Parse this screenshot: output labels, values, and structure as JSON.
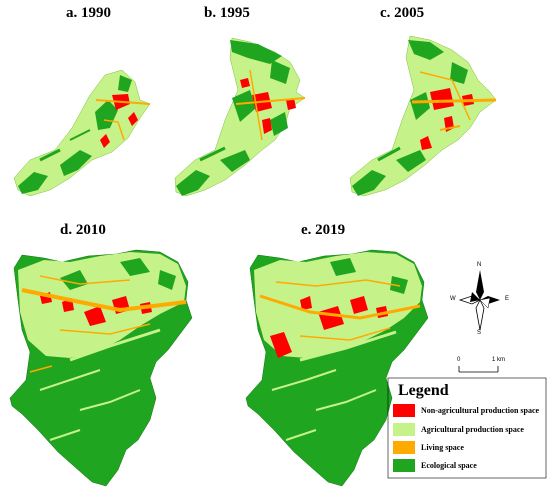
{
  "panels": [
    {
      "id": "a",
      "title": "a. 1990"
    },
    {
      "id": "b",
      "title": "b. 1995"
    },
    {
      "id": "c",
      "title": "c. 2005"
    },
    {
      "id": "d",
      "title": "d. 2010"
    },
    {
      "id": "e",
      "title": "e. 2019"
    }
  ],
  "legend": {
    "title": "Legend",
    "items": [
      {
        "label": "Non-agricultural production space",
        "color": "#ff0000"
      },
      {
        "label": "Agricultural production space",
        "color": "#c6f28a"
      },
      {
        "label": "Living space",
        "color": "#ffaa00"
      },
      {
        "label": "Ecological space",
        "color": "#1fa51f"
      }
    ]
  },
  "compass": {
    "n": "N",
    "s": "S",
    "e": "E",
    "w": "W"
  },
  "scale_bar": {
    "start": "0",
    "end": "1 km"
  }
}
